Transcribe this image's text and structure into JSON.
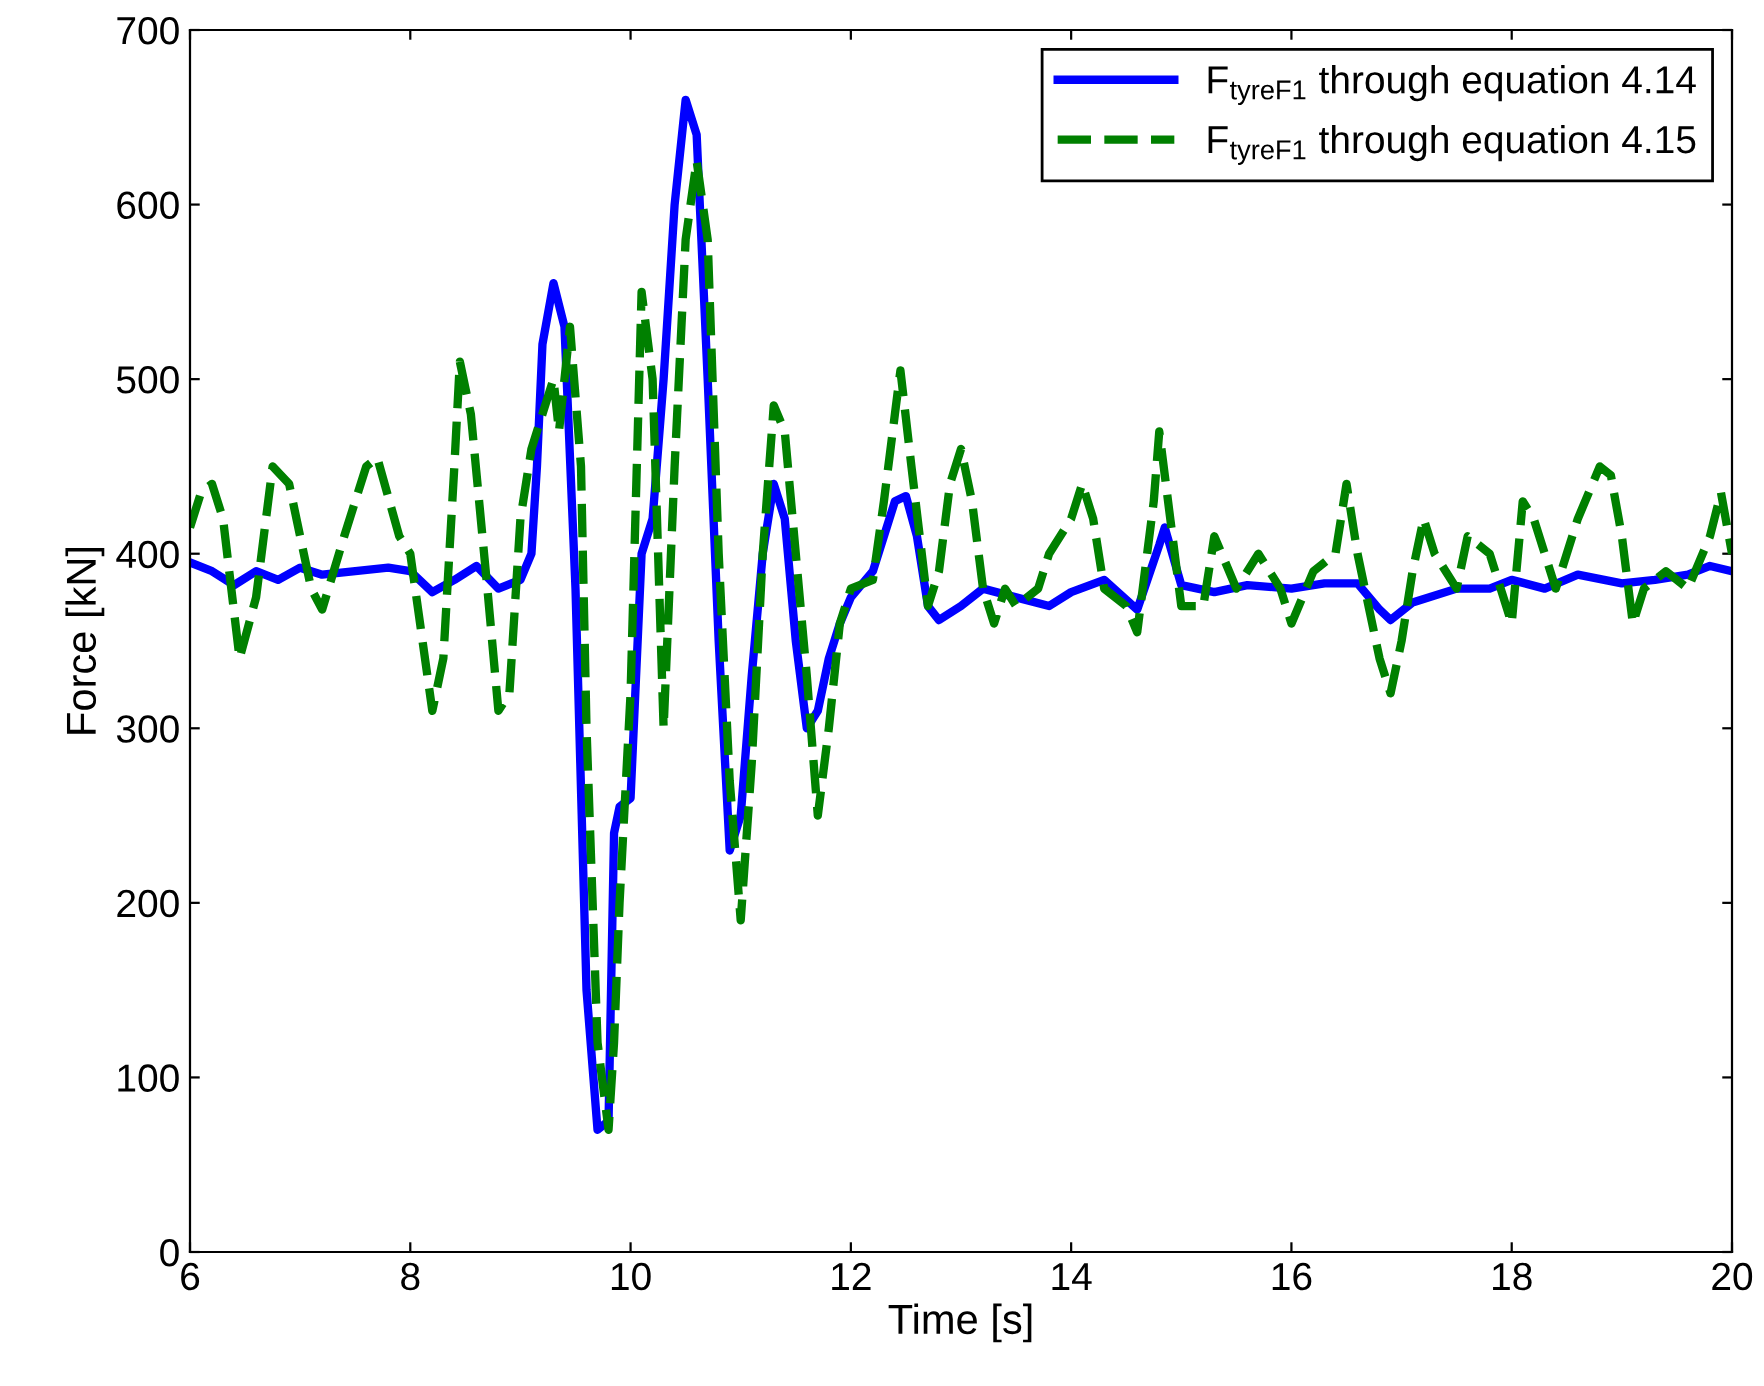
{
  "chart_data": {
    "type": "line",
    "xlabel": "Time [s]",
    "ylabel": "Force [kN]",
    "xlim": [
      6,
      20
    ],
    "xticks": [
      6,
      8,
      10,
      12,
      14,
      16,
      18,
      20
    ],
    "ylim": [
      0,
      700
    ],
    "yticks": [
      0,
      100,
      200,
      300,
      400,
      500,
      600,
      700
    ],
    "grid": false,
    "legend": "top right",
    "series": [
      {
        "name": "F$_{tyreF1}$ through equation 4.14",
        "color": "#0000ff",
        "line_style": "solid",
        "x": [
          6,
          6.2,
          6.4,
          6.6,
          6.8,
          7.0,
          7.2,
          7.5,
          7.8,
          8.0,
          8.2,
          8.4,
          8.6,
          8.8,
          9.0,
          9.1,
          9.15,
          9.2,
          9.3,
          9.4,
          9.5,
          9.6,
          9.7,
          9.8,
          9.85,
          9.9,
          10.0,
          10.1,
          10.2,
          10.3,
          10.4,
          10.5,
          10.6,
          10.7,
          10.8,
          10.9,
          11.0,
          11.1,
          11.2,
          11.3,
          11.4,
          11.5,
          11.6,
          11.7,
          11.8,
          11.9,
          12.0,
          12.2,
          12.4,
          12.5,
          12.6,
          12.7,
          12.8,
          13.0,
          13.2,
          13.5,
          13.8,
          14.0,
          14.3,
          14.6,
          14.8,
          14.85,
          15.0,
          15.3,
          15.6,
          16.0,
          16.3,
          16.6,
          16.8,
          16.9,
          17.1,
          17.5,
          17.8,
          18.0,
          18.3,
          18.6,
          19.0,
          19.3,
          19.6,
          19.8,
          20.0
        ],
        "values": [
          395,
          390,
          382,
          390,
          385,
          392,
          388,
          390,
          392,
          390,
          378,
          385,
          393,
          380,
          385,
          400,
          450,
          520,
          555,
          530,
          380,
          150,
          70,
          75,
          240,
          255,
          260,
          400,
          420,
          500,
          600,
          660,
          640,
          500,
          350,
          230,
          250,
          330,
          400,
          440,
          420,
          350,
          300,
          310,
          340,
          360,
          375,
          390,
          430,
          433,
          410,
          370,
          362,
          370,
          380,
          375,
          370,
          378,
          385,
          368,
          405,
          415,
          382,
          378,
          382,
          380,
          383,
          383,
          368,
          362,
          372,
          380,
          380,
          385,
          380,
          388,
          383,
          385,
          388,
          393,
          390
        ]
      },
      {
        "name": "F$_{tyreF1}$ through equation 4.15",
        "color": "#008000",
        "line_style": "dashed",
        "x": [
          6.0,
          6.1,
          6.2,
          6.3,
          6.45,
          6.6,
          6.75,
          6.9,
          7.1,
          7.2,
          7.4,
          7.6,
          7.7,
          7.9,
          8.0,
          8.2,
          8.3,
          8.4,
          8.45,
          8.55,
          8.7,
          8.8,
          8.9,
          9.0,
          9.1,
          9.2,
          9.3,
          9.35,
          9.45,
          9.55,
          9.6,
          9.7,
          9.8,
          9.85,
          9.9,
          10.0,
          10.1,
          10.2,
          10.3,
          10.4,
          10.5,
          10.6,
          10.7,
          10.8,
          10.9,
          11.0,
          11.1,
          11.2,
          11.3,
          11.4,
          11.5,
          11.6,
          11.7,
          11.8,
          11.9,
          12.0,
          12.2,
          12.3,
          12.4,
          12.45,
          12.55,
          12.7,
          12.8,
          12.9,
          13.0,
          13.1,
          13.2,
          13.3,
          13.4,
          13.5,
          13.7,
          13.8,
          14.0,
          14.1,
          14.2,
          14.3,
          14.5,
          14.6,
          14.75,
          14.8,
          14.9,
          15.0,
          15.2,
          15.3,
          15.5,
          15.7,
          15.9,
          16.0,
          16.2,
          16.4,
          16.5,
          16.6,
          16.8,
          16.9,
          17.0,
          17.1,
          17.2,
          17.3,
          17.5,
          17.6,
          17.8,
          18.0,
          18.1,
          18.2,
          18.4,
          18.6,
          18.8,
          18.9,
          19.0,
          19.1,
          19.2,
          19.4,
          19.6,
          19.8,
          19.9,
          20.0
        ],
        "values": [
          415,
          435,
          440,
          420,
          340,
          375,
          450,
          440,
          380,
          368,
          410,
          450,
          455,
          410,
          400,
          310,
          340,
          450,
          510,
          480,
          380,
          310,
          320,
          420,
          460,
          480,
          500,
          470,
          530,
          450,
          300,
          120,
          70,
          120,
          200,
          320,
          550,
          500,
          300,
          450,
          580,
          625,
          580,
          400,
          270,
          190,
          280,
          400,
          485,
          470,
          400,
          330,
          250,
          300,
          360,
          380,
          385,
          430,
          480,
          505,
          450,
          370,
          390,
          440,
          460,
          430,
          380,
          360,
          380,
          370,
          380,
          400,
          420,
          440,
          420,
          380,
          370,
          355,
          430,
          470,
          420,
          370,
          370,
          410,
          380,
          400,
          380,
          360,
          390,
          400,
          440,
          400,
          340,
          320,
          350,
          390,
          420,
          400,
          380,
          410,
          400,
          360,
          430,
          420,
          380,
          420,
          450,
          445,
          410,
          360,
          380,
          390,
          380,
          410,
          435,
          400
        ]
      }
    ]
  }
}
